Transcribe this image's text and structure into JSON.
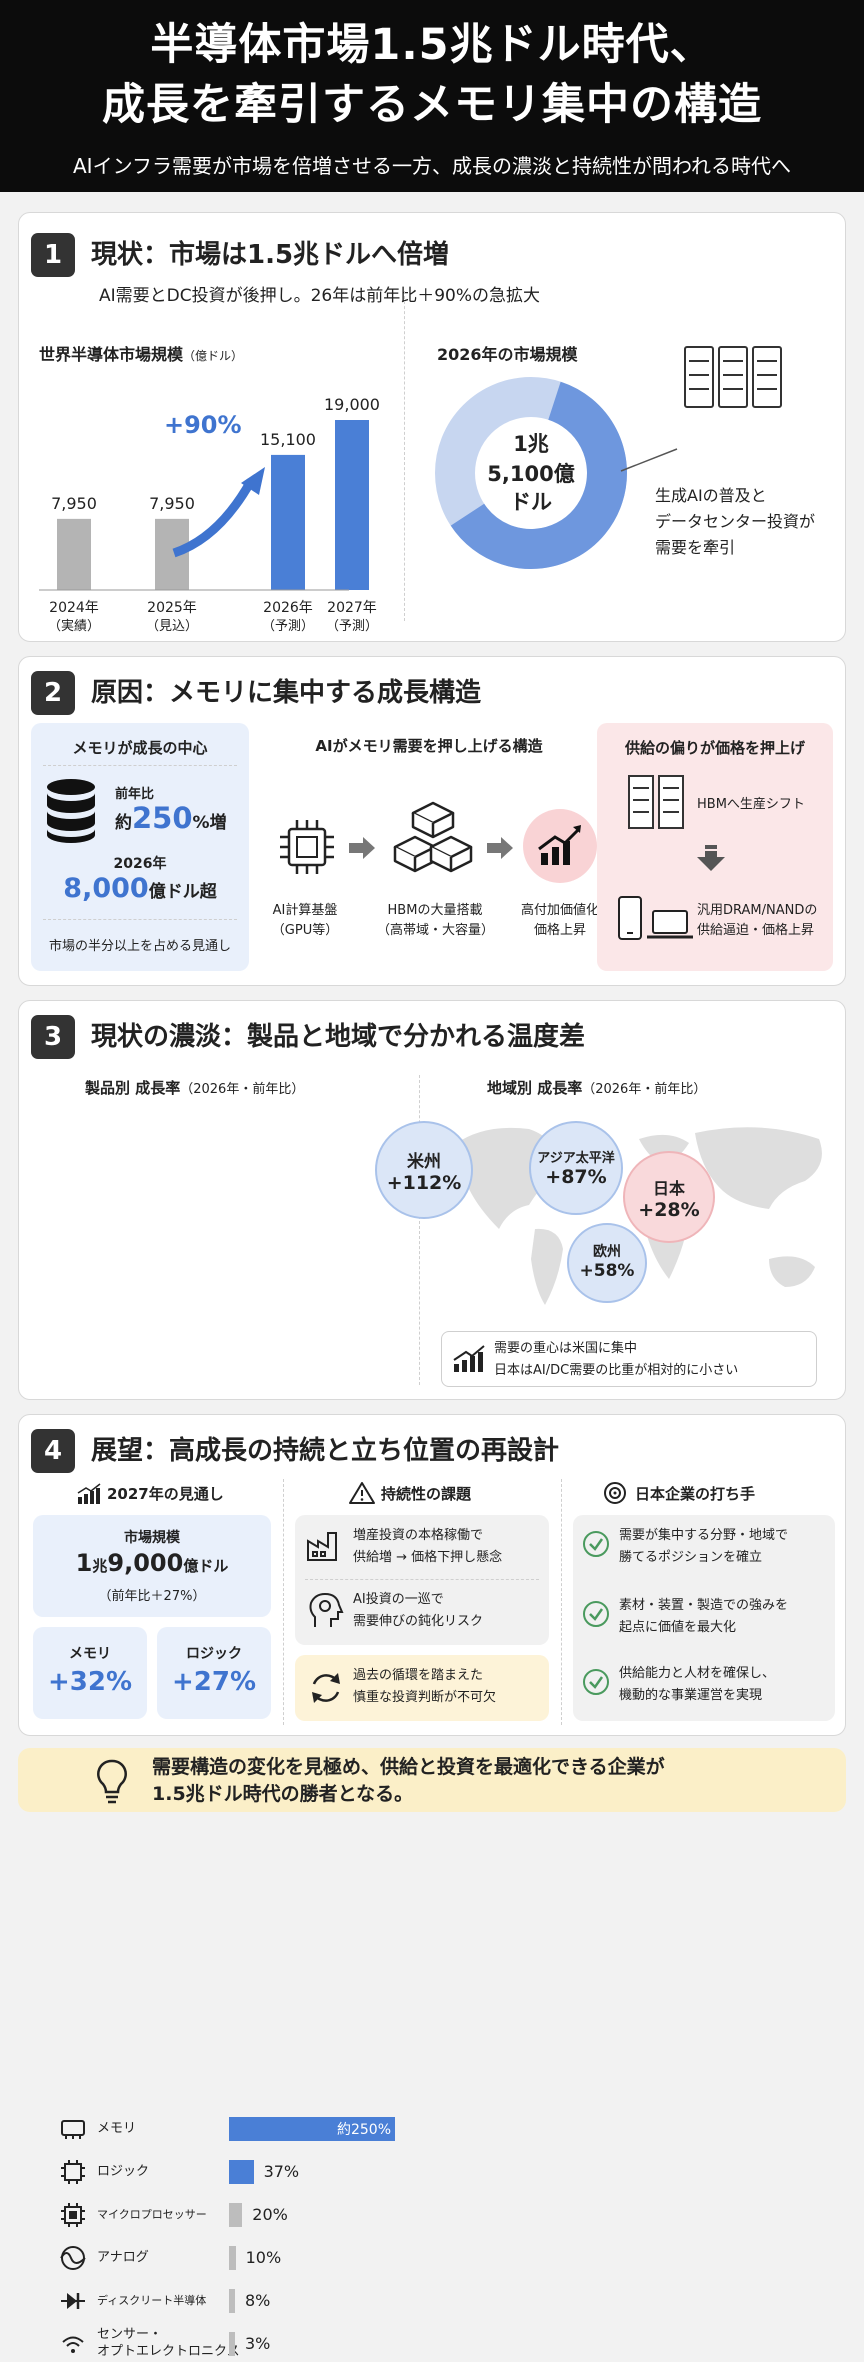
{
  "header": {
    "title_line1": "半導体市場1.5兆ドル時代、",
    "title_line2": "成長を牽引するメモリ集中の構造",
    "subtitle": "AIインフラ需要が市場を倍増させる一方、成長の濃淡と持続性が問われる時代へ"
  },
  "s1": {
    "num": "1",
    "title": "現状：市場は1.5兆ドルへ倍増",
    "subtitle": "AI需要とDC投資が後押し。26年は前年比＋90%の急拡大",
    "chart_title": "世界半導体市場規模",
    "chart_unit": "（億ドル）",
    "growth_label": "+90%",
    "donut_title": "2026年の市場規模",
    "donut_l1": "1兆",
    "donut_l2": "5,100億",
    "donut_l3": "ドル",
    "note_l1": "生成AIの普及と",
    "note_l2": "データセンター投資が",
    "note_l3": "需要を牽引"
  },
  "chart_data": {
    "type": "bar",
    "title": "世界半導体市場規模（億ドル）",
    "categories": [
      "2024年（実績）",
      "2025年（見込）",
      "2026年（予測）",
      "2027年（予測）"
    ],
    "values": [
      7950,
      7950,
      15100,
      19000
    ],
    "value_labels": [
      "7,950",
      "7,950",
      "15,100",
      "19,000"
    ],
    "year_labels": [
      "2024年",
      "2025年",
      "2026年",
      "2027年"
    ],
    "note_labels": [
      "（実績）",
      "（見込）",
      "（予測）",
      "（予測）"
    ],
    "colors": [
      "#b4b4b4",
      "#b4b4b4",
      "#4a7fd6",
      "#4a7fd6"
    ],
    "ylim": [
      0,
      19000
    ]
  },
  "s2": {
    "num": "2",
    "title": "原因：メモリに集中する成長構造",
    "left_title": "メモリが成長の中心",
    "yoy_label": "前年比",
    "yoy_prefix": "約",
    "yoy_value": "250",
    "yoy_suffix": "%増",
    "year_label": "2026年",
    "size_value": "8,000",
    "size_suffix": "億ドル超",
    "left_note": "市場の半分以上を占める見通し",
    "mid_title": "AIがメモリ需要を押し上げる構造",
    "flow": [
      {
        "l1": "AI計算基盤",
        "l2": "（GPU等）"
      },
      {
        "l1": "HBMの大量搭載",
        "l2": "（高帯域・大容量）"
      },
      {
        "l1": "高付加価値化",
        "l2": "価格上昇"
      }
    ],
    "right_title": "供給の偏りが価格を押上げ",
    "right_item1": "HBMへ生産シフト",
    "right_item2_l1": "汎用DRAM/NANDの",
    "right_item2_l2": "供給逼迫・価格上昇"
  },
  "s3": {
    "num": "3",
    "title": "現状の濃淡：製品と地域で分かれる温度差",
    "product_title": "製品別 成長率",
    "product_sub": "（2026年・前年比）",
    "products": [
      {
        "name": "メモリ",
        "value": "約250%",
        "pct": 250
      },
      {
        "name": "ロジック",
        "value": "37%",
        "pct": 37
      },
      {
        "name": "マイクロプロセッサー",
        "value": "20%",
        "pct": 20
      },
      {
        "name": "アナログ",
        "value": "10%",
        "pct": 10
      },
      {
        "name": "ディスクリート半導体",
        "value": "8%",
        "pct": 8
      },
      {
        "name": "センサー・",
        "name2": "オプトエレクトロニクス",
        "value": "3%",
        "pct": 3
      }
    ],
    "region_title": "地域別 成長率",
    "region_sub": "（2026年・前年比）",
    "regions": [
      {
        "name": "米州",
        "value": "+112%"
      },
      {
        "name": "アジア太平洋",
        "value": "+87%"
      },
      {
        "name": "日本",
        "value": "+28%"
      },
      {
        "name": "欧州",
        "value": "+58%"
      }
    ],
    "region_note_l1": "需要の重心は米国に集中",
    "region_note_l2": "日本はAI/DC需要の比重が相対的に小さい"
  },
  "s4": {
    "num": "4",
    "title": "展望：高成長の持続と立ち位置の再設計",
    "col1_title": "2027年の見通し",
    "market_label": "市場規模",
    "market_value_a": "1",
    "market_value_b": "兆",
    "market_value_c": "9,000",
    "market_value_d": "億ドル",
    "market_yoy": "（前年比＋27%）",
    "memory_label": "メモリ",
    "memory_value": "+32%",
    "logic_label": "ロジック",
    "logic_value": "+27%",
    "col2_title": "持続性の課題",
    "issue1_l1": "増産投資の本格稼働で",
    "issue1_l2": "供給増 → 価格下押し懸念",
    "issue2_l1": "AI投資の一巡で",
    "issue2_l2": "需要伸びの鈍化リスク",
    "issue3_l1": "過去の循環を踏まえた",
    "issue3_l2": "慎重な投資判断が不可欠",
    "col3_title": "日本企業の打ち手",
    "action1_l1": "需要が集中する分野・地域で",
    "action1_l2": "勝てるポジションを確立",
    "action2_l1": "素材・装置・製造での強みを",
    "action2_l2": "起点に価値を最大化",
    "action3_l1": "供給能力と人材を確保し、",
    "action3_l2": "機動的な事業運営を実現"
  },
  "footer": {
    "l1": "需要構造の変化を見極め、供給と投資を最適化できる企業が",
    "l2": "1.5兆ドル時代の勝者となる。"
  }
}
